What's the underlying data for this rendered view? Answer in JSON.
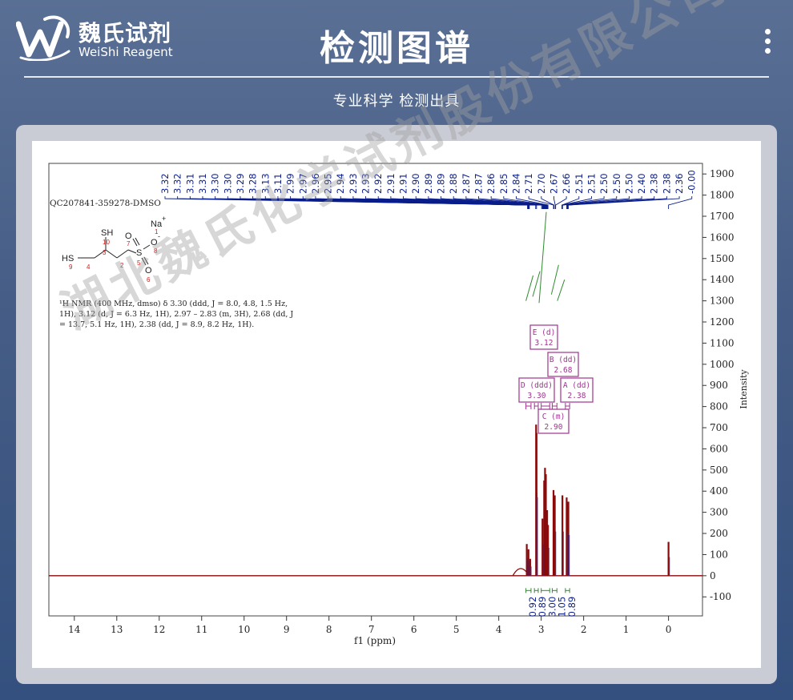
{
  "header": {
    "logo_cn": "魏氏试剂",
    "logo_en": "WeiShi Reagent",
    "title": "检测图谱",
    "subtitle": "专业科学  检测出具"
  },
  "spectrum": {
    "sample_id": "QC207841-359278-DMSO",
    "nmr_description": "¹H NMR (400 MHz, dmso) δ 3.30 (ddd, J = 8.0, 4.8, 1.5 Hz, 1H), 3.12 (d, J = 6.3 Hz, 1H), 2.97 – 2.83 (m, 3H), 2.68 (dd, J = 13.7, 5.1 Hz, 1H), 2.38 (dd, J = 8.9, 8.2 Hz, 1H).",
    "watermark": "湖北魏氏化学试剂股份有限公司",
    "structure_labels": {
      "na": "Na",
      "na_charge": "+",
      "sh_top": "SH",
      "sh_left": "HS",
      "s": "S",
      "o1": "O",
      "o_minus": "O",
      "o_minus_charge": "-",
      "o2": "O",
      "atom_numbers": [
        "1",
        "10",
        "3",
        "9",
        "4",
        "2",
        "7",
        "5",
        "8",
        "6"
      ]
    }
  },
  "chart_data": {
    "type": "line",
    "title": "",
    "xlabel": "f1 (ppm)",
    "ylabel": "Intensity",
    "xlim": [
      14.6,
      -0.8
    ],
    "ylim": [
      -190,
      1950
    ],
    "x_ticks": [
      "14",
      "13",
      "12",
      "11",
      "10",
      "9",
      "8",
      "7",
      "6",
      "5",
      "4",
      "3",
      "2",
      "1",
      "0"
    ],
    "y_ticks": [
      "1900",
      "1800",
      "1700",
      "1600",
      "1500",
      "1400",
      "1300",
      "1200",
      "1100",
      "1000",
      "900",
      "800",
      "700",
      "600",
      "500",
      "400",
      "300",
      "200",
      "100",
      "0",
      "-100"
    ],
    "peak_labels": [
      "3.32",
      "3.32",
      "3.31",
      "3.31",
      "3.30",
      "3.30",
      "3.29",
      "3.28",
      "3.13",
      "3.11",
      "2.99",
      "2.97",
      "2.96",
      "2.95",
      "2.94",
      "2.93",
      "2.93",
      "2.92",
      "2.91",
      "2.91",
      "2.90",
      "2.89",
      "2.89",
      "2.88",
      "2.87",
      "2.87",
      "2.86",
      "2.85",
      "2.84",
      "2.71",
      "2.70",
      "2.67",
      "2.66",
      "2.51",
      "2.51",
      "2.50",
      "2.50",
      "2.50",
      "2.40",
      "2.38",
      "2.38",
      "2.36",
      "-0.00"
    ],
    "peaks": [
      {
        "x": 3.34,
        "y": 150
      },
      {
        "x": 3.3,
        "y": 125
      },
      {
        "x": 3.26,
        "y": 80
      },
      {
        "x": 3.12,
        "y": 715
      },
      {
        "x": 3.11,
        "y": 675
      },
      {
        "x": 2.97,
        "y": 270
      },
      {
        "x": 2.93,
        "y": 450
      },
      {
        "x": 2.91,
        "y": 510
      },
      {
        "x": 2.89,
        "y": 480
      },
      {
        "x": 2.86,
        "y": 310
      },
      {
        "x": 2.84,
        "y": 240
      },
      {
        "x": 2.71,
        "y": 405
      },
      {
        "x": 2.68,
        "y": 380
      },
      {
        "x": 2.5,
        "y": 380
      },
      {
        "x": 2.4,
        "y": 370
      },
      {
        "x": 2.36,
        "y": 350
      },
      {
        "x": 0.0,
        "y": 160
      }
    ],
    "broad_hump": {
      "x": 3.48,
      "y": 45
    },
    "multiplets": [
      {
        "letter": "E",
        "mult": "d",
        "shift": "3.12"
      },
      {
        "letter": "B",
        "mult": "dd",
        "shift": "2.68"
      },
      {
        "letter": "D",
        "mult": "ddd",
        "shift": "3.30"
      },
      {
        "letter": "A",
        "mult": "dd",
        "shift": "2.38"
      },
      {
        "letter": "C",
        "mult": "m",
        "shift": "2.90"
      }
    ],
    "integrals": [
      {
        "value": "0.92",
        "from": 3.36,
        "to": 3.24
      },
      {
        "value": "0.89",
        "from": 3.16,
        "to": 3.07
      },
      {
        "value": "3.00",
        "from": 3.0,
        "to": 2.8
      },
      {
        "value": "1.05",
        "from": 2.74,
        "to": 2.63
      },
      {
        "value": "0.89",
        "from": 2.43,
        "to": 2.33
      }
    ],
    "colors": {
      "spectrum": "#8b0a0a",
      "labels": "#0a1e8a",
      "integral": "#2e8b2e",
      "multiplet": "#a0338f"
    }
  }
}
